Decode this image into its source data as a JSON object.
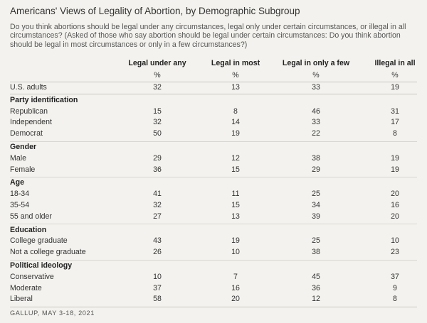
{
  "title": "Americans' Views of Legality of Abortion, by Demographic Subgroup",
  "question": "Do you think abortions should be legal under any circumstances, legal only under certain circumstances, or illegal in all circumstances? (Asked of those who say abortion should be legal under certain circumstances: Do you think abortion should be legal in most circumstances or only in a few circumstances?)",
  "columns": [
    {
      "header": "Legal under any",
      "unit": "%"
    },
    {
      "header": "Legal in most",
      "unit": "%"
    },
    {
      "header": "Legal in only a few",
      "unit": "%"
    },
    {
      "header": "Illegal in all",
      "unit": "%"
    }
  ],
  "overall": {
    "label": "U.S. adults",
    "values": [
      "32",
      "13",
      "33",
      "19"
    ]
  },
  "sections": [
    {
      "title": "Party identification",
      "rows": [
        {
          "label": "Republican",
          "values": [
            "15",
            "8",
            "46",
            "31"
          ]
        },
        {
          "label": "Independent",
          "values": [
            "32",
            "14",
            "33",
            "17"
          ]
        },
        {
          "label": "Democrat",
          "values": [
            "50",
            "19",
            "22",
            "8"
          ]
        }
      ]
    },
    {
      "title": "Gender",
      "rows": [
        {
          "label": "Male",
          "values": [
            "29",
            "12",
            "38",
            "19"
          ]
        },
        {
          "label": "Female",
          "values": [
            "36",
            "15",
            "29",
            "19"
          ]
        }
      ]
    },
    {
      "title": "Age",
      "rows": [
        {
          "label": "18-34",
          "values": [
            "41",
            "11",
            "25",
            "20"
          ]
        },
        {
          "label": "35-54",
          "values": [
            "32",
            "15",
            "34",
            "16"
          ]
        },
        {
          "label": "55 and older",
          "values": [
            "27",
            "13",
            "39",
            "20"
          ]
        }
      ]
    },
    {
      "title": "Education",
      "rows": [
        {
          "label": "College graduate",
          "values": [
            "43",
            "19",
            "25",
            "10"
          ]
        },
        {
          "label": "Not a college graduate",
          "values": [
            "26",
            "10",
            "38",
            "23"
          ]
        }
      ]
    },
    {
      "title": "Political ideology",
      "rows": [
        {
          "label": "Conservative",
          "values": [
            "10",
            "7",
            "45",
            "37"
          ]
        },
        {
          "label": "Moderate",
          "values": [
            "37",
            "16",
            "36",
            "9"
          ]
        },
        {
          "label": "Liberal",
          "values": [
            "58",
            "20",
            "12",
            "8"
          ]
        }
      ]
    }
  ],
  "footer": "GALLUP, MAY 3-18, 2021"
}
